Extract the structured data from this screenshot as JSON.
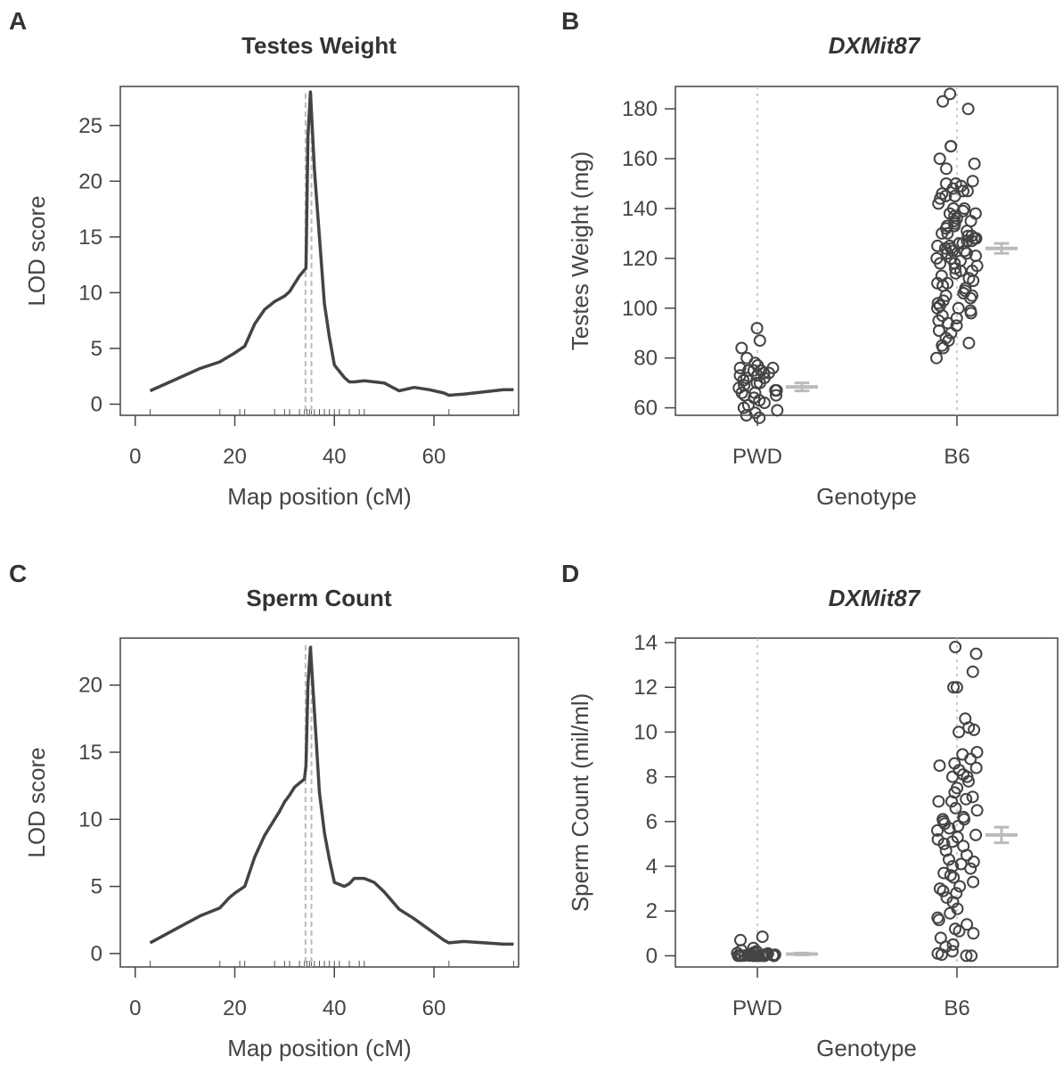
{
  "chart_data": [
    {
      "panel": "A",
      "type": "line",
      "title": "Testes Weight",
      "xlabel": "Map position (cM)",
      "ylabel": "LOD score",
      "xlim": [
        -3,
        77
      ],
      "ylim": [
        -1,
        28.5
      ],
      "xticks": [
        0,
        20,
        40,
        60
      ],
      "yticks": [
        0,
        5,
        10,
        15,
        20,
        25
      ],
      "x": [
        3,
        8,
        13,
        17,
        20,
        22,
        24,
        26,
        28,
        30,
        31,
        33,
        34.3,
        34.7,
        35.2,
        36,
        37,
        38,
        39,
        40,
        42,
        43,
        44,
        46,
        48,
        50,
        53,
        56,
        59,
        62,
        63,
        66,
        70,
        74,
        76
      ],
      "y": [
        1.2,
        2.2,
        3.2,
        3.8,
        4.6,
        5.2,
        7.2,
        8.5,
        9.2,
        9.7,
        10.1,
        11.5,
        12.2,
        24.0,
        28.0,
        21.0,
        15.0,
        9.0,
        6.0,
        3.5,
        2.4,
        2.0,
        2.0,
        2.1,
        2.0,
        1.9,
        1.2,
        1.5,
        1.3,
        1.0,
        0.8,
        0.9,
        1.1,
        1.3,
        1.3
      ],
      "marker_ticks": [
        3,
        17,
        21,
        22,
        28,
        30,
        31,
        33,
        34,
        34.5,
        35,
        35.4,
        36,
        37,
        38,
        39,
        40,
        41,
        43,
        45,
        46,
        63,
        76
      ],
      "peak_lines": [
        34.2,
        35.4
      ]
    },
    {
      "panel": "B",
      "type": "scatter",
      "title": "DXMit87",
      "xlabel": "Genotype",
      "ylabel": "Testes Weight (mg)",
      "categories": [
        "PWD",
        "B6"
      ],
      "ylim": [
        57,
        189
      ],
      "yticks": [
        60,
        80,
        100,
        120,
        140,
        160,
        180
      ],
      "groups": [
        {
          "name": "PWD",
          "mean": 68.4,
          "se": 1.6,
          "values": [
            92,
            87,
            84,
            80,
            78,
            77,
            76,
            76,
            75,
            75,
            75,
            74,
            74,
            73,
            73,
            72,
            72,
            71,
            70,
            70,
            69,
            68,
            67,
            67,
            66,
            66,
            65,
            65,
            64,
            63,
            62,
            61,
            60,
            59,
            58,
            57,
            56
          ]
        },
        {
          "name": "B6",
          "mean": 124.0,
          "se": 2.0,
          "values": [
            186,
            183,
            180,
            165,
            165,
            160,
            158,
            156,
            151,
            150,
            150,
            149,
            148,
            147,
            147,
            146,
            145,
            145,
            144,
            142,
            140,
            140,
            139,
            138,
            138,
            137,
            136,
            135,
            135,
            134,
            133,
            133,
            132,
            131,
            130,
            130,
            129,
            129,
            128,
            128,
            127,
            127,
            126,
            126,
            125,
            125,
            124,
            124,
            123,
            123,
            122,
            122,
            121,
            120,
            120,
            119,
            118,
            118,
            117,
            116,
            115,
            115,
            114,
            113,
            112,
            111,
            110,
            110,
            109,
            108,
            107,
            106,
            105,
            105,
            104,
            103,
            102,
            101,
            100,
            100,
            99,
            98,
            97,
            96,
            95,
            94,
            93,
            91,
            90,
            88,
            87,
            86,
            85,
            84,
            80
          ]
        }
      ]
    },
    {
      "panel": "C",
      "type": "line",
      "title": "Sperm Count",
      "xlabel": "Map position (cM)",
      "ylabel": "LOD score",
      "xlim": [
        -3,
        77
      ],
      "ylim": [
        -1,
        23.5
      ],
      "xticks": [
        0,
        20,
        40,
        60
      ],
      "yticks": [
        0,
        5,
        10,
        15,
        20
      ],
      "x": [
        3,
        8,
        13,
        17,
        19,
        20,
        22,
        24,
        26,
        28,
        29,
        30,
        31,
        32,
        34,
        34.3,
        34.7,
        35.2,
        36,
        37,
        38,
        39,
        40,
        42,
        43,
        44,
        46,
        48,
        50,
        53,
        56,
        59,
        62,
        63,
        66,
        70,
        74,
        76
      ],
      "y": [
        0.8,
        1.8,
        2.8,
        3.4,
        4.2,
        4.5,
        5.0,
        7.2,
        8.8,
        10.0,
        10.6,
        11.3,
        11.8,
        12.4,
        13.0,
        14.0,
        20.0,
        22.8,
        18.0,
        12.0,
        9.0,
        7.0,
        5.3,
        5.0,
        5.2,
        5.6,
        5.6,
        5.3,
        4.6,
        3.3,
        2.6,
        1.8,
        1.0,
        0.8,
        0.9,
        0.8,
        0.7,
        0.7
      ],
      "marker_ticks": [
        3,
        17,
        21,
        22,
        28,
        30,
        31,
        33,
        34,
        34.5,
        35,
        35.4,
        36,
        37,
        38,
        39,
        40,
        41,
        43,
        45,
        46,
        63,
        76
      ],
      "peak_lines": [
        34.2,
        35.4
      ]
    },
    {
      "panel": "D",
      "type": "scatter",
      "title": "DXMit87",
      "xlabel": "Genotype",
      "ylabel": "Sperm Count (mil/ml)",
      "categories": [
        "PWD",
        "B6"
      ],
      "ylim": [
        -0.5,
        14.2
      ],
      "yticks": [
        0,
        2,
        4,
        6,
        8,
        10,
        12,
        14
      ],
      "groups": [
        {
          "name": "PWD",
          "mean": 0.08,
          "se": 0.04,
          "values": [
            0.85,
            0.7,
            0.35,
            0.25,
            0.2,
            0.15,
            0.12,
            0.1,
            0.1,
            0.08,
            0.06,
            0.05,
            0.05,
            0.04,
            0.03,
            0.03,
            0.02,
            0.02,
            0.02,
            0.01,
            0.01,
            0.01,
            0.0,
            0.0,
            0.0,
            0.0,
            0.0,
            0.0,
            0.0,
            0.0,
            0.0,
            0.0,
            0.0,
            0.0,
            0.0,
            0.0
          ]
        },
        {
          "name": "B6",
          "mean": 5.4,
          "se": 0.35,
          "values": [
            13.8,
            13.5,
            12.7,
            12.0,
            12.0,
            10.6,
            10.2,
            10.1,
            10.0,
            9.1,
            9.0,
            8.8,
            8.6,
            8.5,
            8.4,
            8.3,
            8.1,
            8.0,
            8.0,
            7.8,
            7.5,
            7.3,
            7.1,
            7.0,
            6.9,
            6.9,
            6.6,
            6.5,
            6.2,
            6.1,
            6.1,
            6.0,
            5.9,
            5.8,
            5.7,
            5.6,
            5.4,
            5.3,
            5.2,
            5.1,
            5.0,
            4.9,
            4.7,
            4.5,
            4.3,
            4.2,
            4.1,
            4.0,
            3.9,
            3.7,
            3.6,
            3.5,
            3.3,
            3.1,
            3.0,
            2.9,
            2.8,
            2.6,
            2.4,
            2.1,
            1.9,
            1.7,
            1.6,
            1.4,
            1.2,
            1.1,
            1.0,
            0.8,
            0.5,
            0.4,
            0.2,
            0.1,
            0.05,
            0.0,
            0.0
          ]
        }
      ]
    }
  ]
}
